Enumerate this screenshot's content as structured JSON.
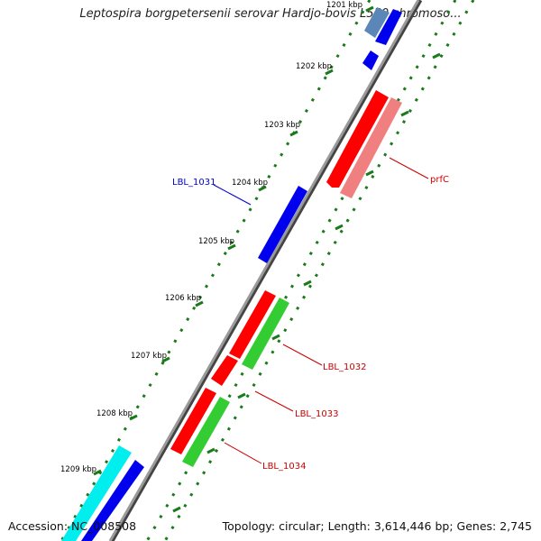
{
  "title": "Leptospira borgpetersenii serovar Hardjo-bovis L550 chromoso...",
  "footer": {
    "accession": "Accession: NC_008508",
    "summary": "Topology: circular; Length: 3,614,446 bp; Genes: 2,745"
  },
  "ticks": [
    "1201 kbp",
    "1202 kbp",
    "1203 kbp",
    "1204 kbp",
    "1205 kbp",
    "1206 kbp",
    "1207 kbp",
    "1208 kbp",
    "1209 kbp"
  ],
  "gene_labels": {
    "prfC": "prfC",
    "lbl1031": "LBL_1031",
    "lbl1032": "LBL_1032",
    "lbl1033": "LBL_1033",
    "lbl1034": "LBL_1034"
  },
  "colors": {
    "cds_red": "#ff0000",
    "cds_pink": "#f08080",
    "cds_blue": "#0000ee",
    "cds_green": "#33cc33",
    "cds_cyan": "#00eeee",
    "backbone": "#888888",
    "dots": "#1a7a1a"
  }
}
